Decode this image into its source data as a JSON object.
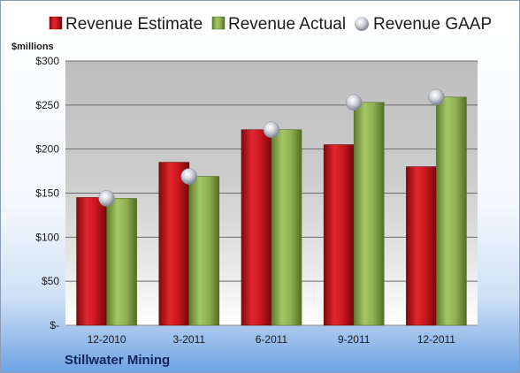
{
  "chart_data": {
    "type": "bar",
    "title": "",
    "ylabel": "$millions",
    "xlabel": "",
    "company": "Stillwater Mining",
    "categories": [
      "12-2010",
      "3-2011",
      "6-2011",
      "9-2011",
      "12-2011"
    ],
    "ylim": [
      0,
      300
    ],
    "yticks": [
      0,
      50,
      100,
      150,
      200,
      250,
      300
    ],
    "ytick_labels": [
      "$-",
      "$50",
      "$100",
      "$150",
      "$200",
      "$250",
      "$300"
    ],
    "grid": true,
    "legend_position": "top",
    "series": [
      {
        "name": "Revenue Estimate",
        "kind": "bar",
        "color": "#c8161d",
        "values": [
          145,
          185,
          222,
          205,
          180
        ]
      },
      {
        "name": "Revenue Actual",
        "kind": "bar",
        "color": "#8fb050",
        "values": [
          144,
          169,
          222,
          253,
          259
        ]
      },
      {
        "name": "Revenue GAAP",
        "kind": "marker",
        "color": "#c7ccd3",
        "values": [
          144,
          169,
          222,
          253,
          259
        ]
      }
    ]
  }
}
